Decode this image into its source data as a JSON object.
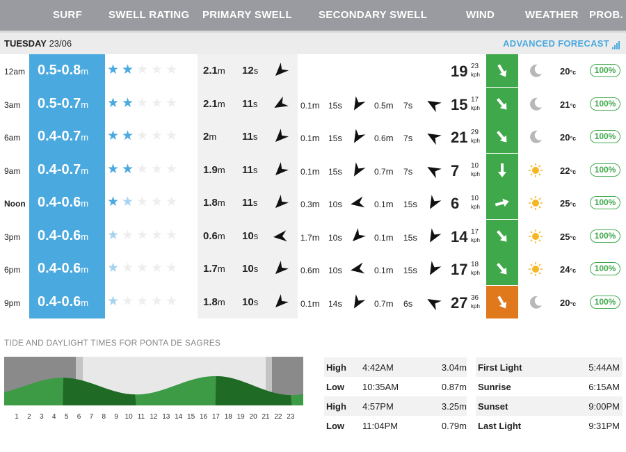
{
  "header": {
    "surf": "SURF",
    "swell_rating": "SWELL RATING",
    "primary_swell": "PRIMARY SWELL",
    "secondary_swell": "SECONDARY SWELL",
    "wind": "WIND",
    "weather": "WEATHER",
    "prob": "PROB."
  },
  "day": {
    "name": "TUESDAY",
    "date": "23/06"
  },
  "advanced_forecast": "ADVANCED FORECAST",
  "colors": {
    "surf_blue": "#4aa9de",
    "wind_green": "#3fa84b",
    "wind_orange": "#e0781c",
    "sun": "#f5b623",
    "moon": "#b8b8b8"
  },
  "rows": [
    {
      "time": "12am",
      "bold": false,
      "surf": "0.5-0.8",
      "surf_unit": "m",
      "rating": 2,
      "rating_faint": 0,
      "p_h": "2.1",
      "p_p": "12",
      "p_dir": 225,
      "secondary": [],
      "wind": "19",
      "gust": "23",
      "kph": "kph",
      "wind_dir": 330,
      "wind_color": "green",
      "weather": "moon-icon",
      "temp": "20",
      "temp_unit": "°c",
      "prob": "100%"
    },
    {
      "time": "3am",
      "bold": false,
      "surf": "0.5-0.7",
      "surf_unit": "m",
      "rating": 2,
      "rating_faint": 0,
      "p_h": "2.1",
      "p_p": "11",
      "p_dir": 240,
      "secondary": [
        {
          "h": "0.1",
          "p": "15",
          "dir": 210
        },
        {
          "h": "0.5",
          "p": "7",
          "dir": 300
        }
      ],
      "wind": "15",
      "gust": "17",
      "kph": "kph",
      "wind_dir": 320,
      "wind_color": "green",
      "weather": "moon-icon",
      "temp": "21",
      "temp_unit": "°c",
      "prob": "100%"
    },
    {
      "time": "6am",
      "bold": false,
      "surf": "0.4-0.7",
      "surf_unit": "m",
      "rating": 2,
      "rating_faint": 0,
      "p_h": "2",
      "p_p": "11",
      "p_dir": 225,
      "secondary": [
        {
          "h": "0.1",
          "p": "15",
          "dir": 210
        },
        {
          "h": "0.6",
          "p": "7",
          "dir": 300
        }
      ],
      "wind": "21",
      "gust": "29",
      "kph": "kph",
      "wind_dir": 320,
      "wind_color": "green",
      "weather": "moon-icon",
      "temp": "20",
      "temp_unit": "°c",
      "prob": "100%"
    },
    {
      "time": "9am",
      "bold": false,
      "surf": "0.4-0.7",
      "surf_unit": "m",
      "rating": 2,
      "rating_faint": 0,
      "p_h": "1.9",
      "p_p": "11",
      "p_dir": 225,
      "secondary": [
        {
          "h": "0.1",
          "p": "15",
          "dir": 210
        },
        {
          "h": "0.7",
          "p": "7",
          "dir": 300
        }
      ],
      "wind": "7",
      "gust": "10",
      "kph": "kph",
      "wind_dir": 0,
      "wind_color": "green",
      "weather": "sun-icon",
      "temp": "22",
      "temp_unit": "°c",
      "prob": "100%"
    },
    {
      "time": "Noon",
      "bold": true,
      "surf": "0.4-0.6",
      "surf_unit": "m",
      "rating": 1,
      "rating_faint": 1,
      "p_h": "1.8",
      "p_p": "11",
      "p_dir": 225,
      "secondary": [
        {
          "h": "0.3",
          "p": "10",
          "dir": 260
        },
        {
          "h": "0.1",
          "p": "15",
          "dir": 210
        }
      ],
      "wind": "6",
      "gust": "10",
      "kph": "kph",
      "wind_dir": 255,
      "wind_color": "green",
      "weather": "sun-icon",
      "temp": "25",
      "temp_unit": "°c",
      "prob": "100%"
    },
    {
      "time": "3pm",
      "bold": false,
      "surf": "0.4-0.6",
      "surf_unit": "m",
      "rating": 0,
      "rating_faint": 1,
      "p_h": "0.6",
      "p_p": "10",
      "p_dir": 265,
      "secondary": [
        {
          "h": "1.7",
          "p": "10",
          "dir": 225
        },
        {
          "h": "0.1",
          "p": "15",
          "dir": 210
        }
      ],
      "wind": "14",
      "gust": "17",
      "kph": "kph",
      "wind_dir": 320,
      "wind_color": "green",
      "weather": "sun-icon",
      "temp": "25",
      "temp_unit": "°c",
      "prob": "100%"
    },
    {
      "time": "6pm",
      "bold": false,
      "surf": "0.4-0.6",
      "surf_unit": "m",
      "rating": 0,
      "rating_faint": 1,
      "p_h": "1.7",
      "p_p": "10",
      "p_dir": 225,
      "secondary": [
        {
          "h": "0.6",
          "p": "10",
          "dir": 260
        },
        {
          "h": "0.1",
          "p": "15",
          "dir": 210
        }
      ],
      "wind": "17",
      "gust": "18",
      "kph": "kph",
      "wind_dir": 320,
      "wind_color": "green",
      "weather": "sun-icon",
      "temp": "24",
      "temp_unit": "°c",
      "prob": "100%"
    },
    {
      "time": "9pm",
      "bold": false,
      "surf": "0.4-0.6",
      "surf_unit": "m",
      "rating": 0,
      "rating_faint": 1,
      "p_h": "1.8",
      "p_p": "10",
      "p_dir": 225,
      "secondary": [
        {
          "h": "0.1",
          "p": "14",
          "dir": 210
        },
        {
          "h": "0.7",
          "p": "6",
          "dir": 300
        }
      ],
      "wind": "27",
      "gust": "36",
      "kph": "kph",
      "wind_dir": 330,
      "wind_color": "orange",
      "weather": "moon-icon",
      "temp": "20",
      "temp_unit": "°c",
      "prob": "100%"
    }
  ],
  "tide_title": "TIDE AND DAYLIGHT TIMES FOR PONTA DE SAGRES",
  "tide_hours": [
    "1",
    "2",
    "3",
    "4",
    "5",
    "6",
    "7",
    "8",
    "9",
    "10",
    "11",
    "12",
    "13",
    "14",
    "15",
    "16",
    "17",
    "18",
    "19",
    "20",
    "21",
    "22",
    "23"
  ],
  "tides": [
    {
      "type": "High",
      "time": "4:42AM",
      "height": "3.04m"
    },
    {
      "type": "Low",
      "time": "10:35AM",
      "height": "0.87m"
    },
    {
      "type": "High",
      "time": "4:57PM",
      "height": "3.25m"
    },
    {
      "type": "Low",
      "time": "11:04PM",
      "height": "0.79m"
    }
  ],
  "daylight": [
    {
      "label": "First Light",
      "time": "5:44AM"
    },
    {
      "label": "Sunrise",
      "time": "6:15AM"
    },
    {
      "label": "Sunset",
      "time": "9:00PM"
    },
    {
      "label": "Last Light",
      "time": "9:31PM"
    }
  ]
}
